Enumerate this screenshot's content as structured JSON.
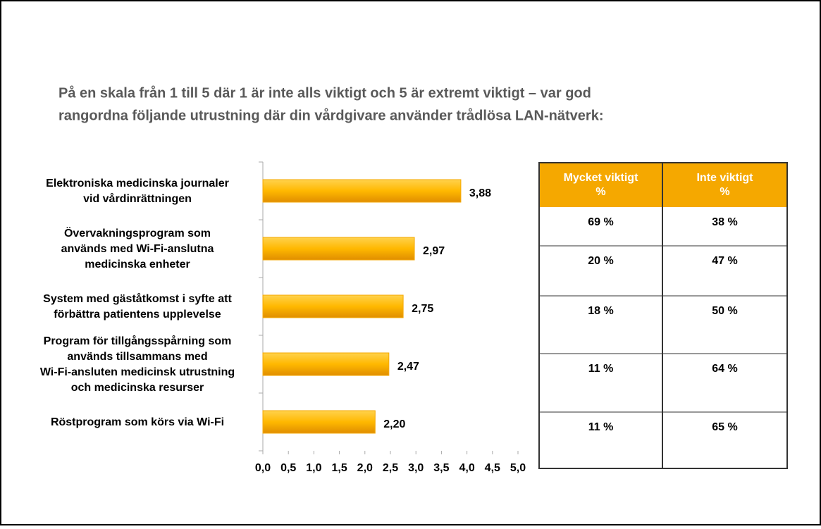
{
  "chart_data": {
    "type": "bar",
    "orientation": "horizontal",
    "title": [
      "På en skala från 1 till 5 där 1 är inte alls viktigt och 5 är extremt viktigt – var god",
      "rangordna följande utrustning där din vårdgivare använder trådlösa LAN-nätverk:"
    ],
    "categories": [
      "Elektroniska medicinska journaler\nvid vårdinrättningen",
      "Övervakningsprogram som\nanvänds med Wi-Fi-anslutna\nmedicinska enheter",
      "System med gäståtkomst i syfte att\nförbättra patientens upplevelse",
      "Program för tillgångsspårning som\nanvänds tillsammans med\nWi-Fi-ansluten medicinsk utrustning\noch medicinska resurser",
      "Röstprogram som körs via Wi-Fi"
    ],
    "values": [
      3.88,
      2.97,
      2.75,
      2.47,
      2.2
    ],
    "value_labels": [
      "3,88",
      "2,97",
      "2,75",
      "2,47",
      "2,20"
    ],
    "color": "#f5a800",
    "xlim": [
      0,
      5
    ],
    "xticks": [
      {
        "value": 0,
        "label": "0,0"
      },
      {
        "value": 0.5,
        "label": "0,5"
      },
      {
        "value": 1,
        "label": "1,0"
      },
      {
        "value": 1.5,
        "label": "1,5"
      },
      {
        "value": 2,
        "label": "2,0"
      },
      {
        "value": 2.5,
        "label": "2,5"
      },
      {
        "value": 3,
        "label": "3,0"
      },
      {
        "value": 3.5,
        "label": "3,5"
      },
      {
        "value": 4,
        "label": "4,0"
      },
      {
        "value": 4.5,
        "label": "4,5"
      },
      {
        "value": 5,
        "label": "5,0"
      }
    ]
  },
  "table": {
    "columns": [
      "Mycket viktigt\n%",
      "Inte viktigt\n%"
    ],
    "rows": [
      [
        "69 %",
        "38 %"
      ],
      [
        "20 %",
        "47 %"
      ],
      [
        "18 %",
        "50 %"
      ],
      [
        "11 %",
        "64 %"
      ],
      [
        "11 %",
        "65 %"
      ]
    ]
  }
}
